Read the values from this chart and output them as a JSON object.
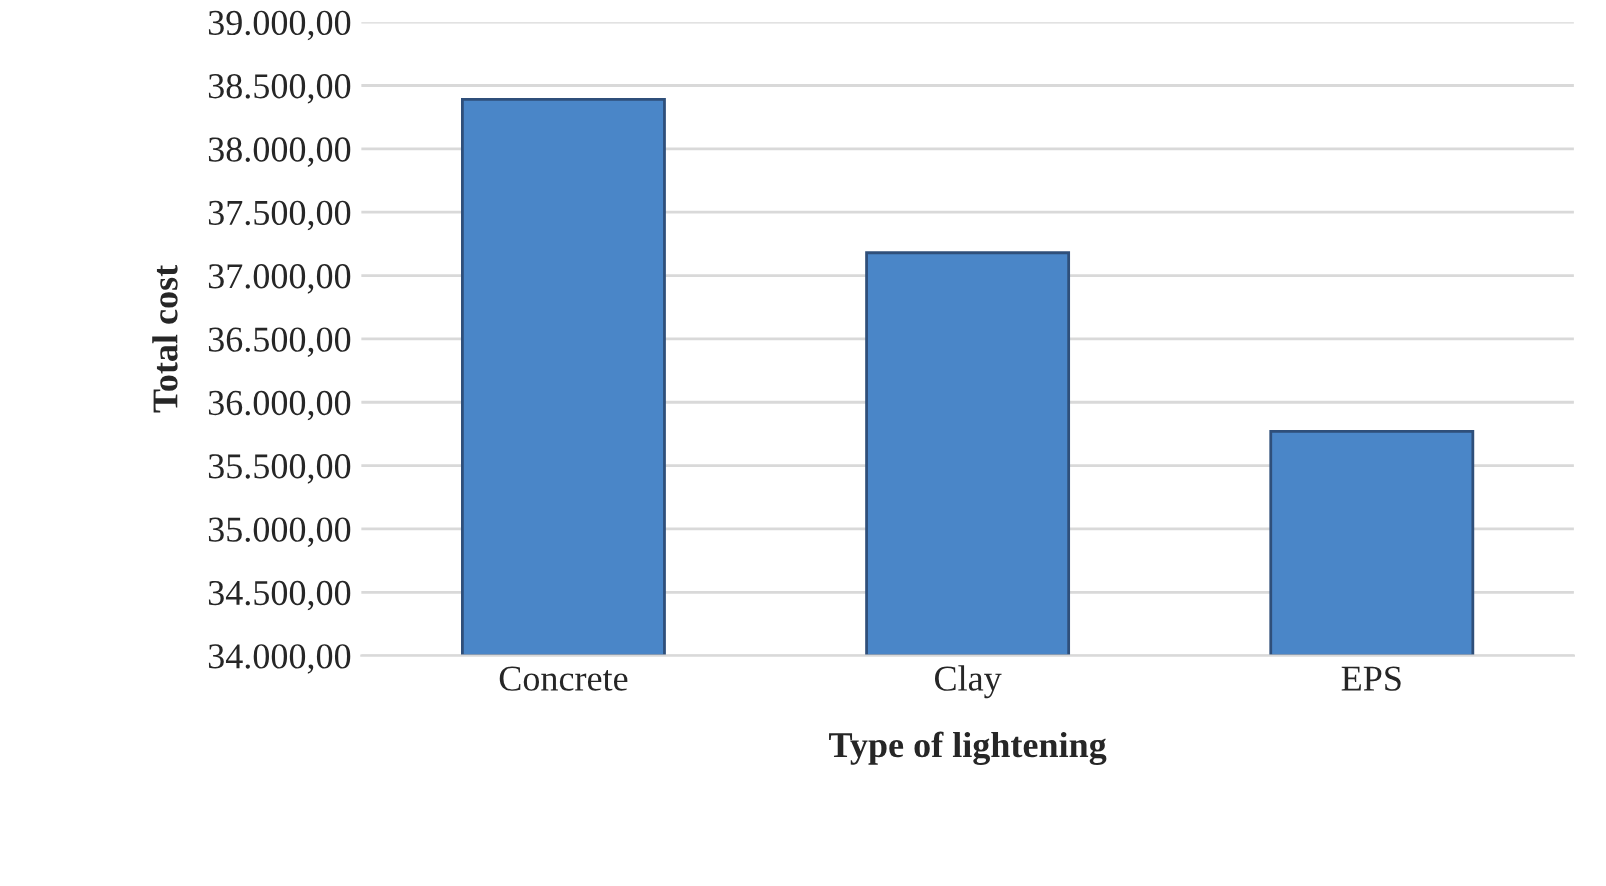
{
  "chart_data": {
    "type": "bar",
    "xlabel": "Type of lightening",
    "ylabel": "Total cost",
    "categories": [
      "Concrete",
      "Clay",
      "EPS"
    ],
    "values": [
      38390,
      37180,
      35770
    ],
    "color": "#4a86c8",
    "ylim": [
      34000,
      39000
    ],
    "yticks": [
      {
        "value": 34000,
        "label": "34.000,00"
      },
      {
        "value": 34500,
        "label": "34.500,00"
      },
      {
        "value": 35000,
        "label": "35.000,00"
      },
      {
        "value": 35500,
        "label": "35.500,00"
      },
      {
        "value": 36000,
        "label": "36.000,00"
      },
      {
        "value": 36500,
        "label": "36.500,00"
      },
      {
        "value": 37000,
        "label": "37.000,00"
      },
      {
        "value": 37500,
        "label": "37.500,00"
      },
      {
        "value": 38000,
        "label": "38.000,00"
      },
      {
        "value": 38500,
        "label": "38.500,00"
      },
      {
        "value": 39000,
        "label": "39.000,00"
      }
    ],
    "grid": "y"
  }
}
